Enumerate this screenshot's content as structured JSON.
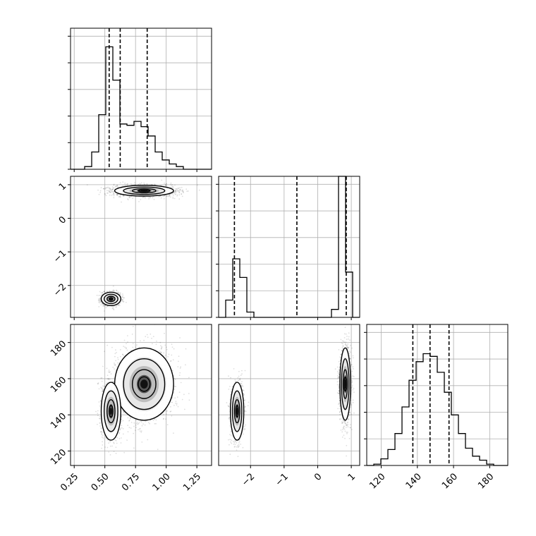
{
  "chart_data": {
    "type": "corner",
    "title": "",
    "parameters": [
      {
        "label": "",
        "range": [
          0.22,
          1.37
        ],
        "ticks": [
          "0.25",
          "0.50",
          "0.75",
          "1.00",
          "1.25"
        ],
        "tick_values": [
          0.25,
          0.5,
          0.75,
          1.0,
          1.25
        ],
        "quantiles": [
          0.535,
          0.625,
          0.845
        ]
      },
      {
        "label": "",
        "range": [
          -2.95,
          1.25
        ],
        "ticks": [
          "−2",
          "−1",
          "0",
          "1"
        ],
        "tick_values": [
          -2,
          -1,
          0,
          1
        ],
        "quantiles": [
          -2.48,
          -0.62,
          0.85
        ]
      },
      {
        "label": "",
        "range": [
          112,
          190
        ],
        "ticks": [
          "120",
          "140",
          "160",
          "180"
        ],
        "tick_values": [
          120,
          140,
          160,
          180
        ],
        "quantiles": [
          137.5,
          147,
          157.5
        ]
      }
    ],
    "histograms": [
      {
        "bin_edges": [
          0.22,
          0.2775,
          0.335,
          0.3925,
          0.45,
          0.5075,
          0.565,
          0.6225,
          0.68,
          0.7375,
          0.795,
          0.8525,
          0.91,
          0.9675,
          1.025,
          1.0825,
          1.14,
          1.1975,
          1.255,
          1.3125,
          1.37
        ],
        "counts": [
          0.0,
          0.0,
          0.02,
          0.13,
          0.41,
          0.92,
          0.67,
          0.34,
          0.33,
          0.36,
          0.32,
          0.25,
          0.13,
          0.07,
          0.04,
          0.02,
          0.0,
          0.0,
          0.0,
          0.0
        ]
      },
      {
        "bin_edges": [
          -2.95,
          -2.74,
          -2.53,
          -2.32,
          -2.11,
          -1.9,
          -1.69,
          -1.48,
          -1.27,
          -1.06,
          -0.85,
          -0.64,
          -0.43,
          -0.22,
          -0.01,
          0.2,
          0.41,
          0.62,
          0.83,
          1.04,
          1.25
        ],
        "counts": [
          0.0,
          0.13,
          0.44,
          0.3,
          0.04,
          0.0,
          0.0,
          0.0,
          0.0,
          0.0,
          0.0,
          0.0,
          0.0,
          0.0,
          0.0,
          0.0,
          0.06,
          1.06,
          0.34,
          0.0
        ]
      },
      {
        "bin_edges": [
          112,
          115.9,
          119.8,
          123.7,
          127.6,
          131.5,
          135.4,
          139.3,
          143.2,
          147.1,
          151,
          154.9,
          158.8,
          162.7,
          166.6,
          170.5,
          174.4,
          178.3,
          182.2,
          186.1,
          190
        ],
        "counts": [
          0.0,
          0.01,
          0.05,
          0.12,
          0.24,
          0.44,
          0.64,
          0.78,
          0.84,
          0.82,
          0.7,
          0.55,
          0.38,
          0.24,
          0.13,
          0.07,
          0.04,
          0.01,
          0.0,
          0.0
        ]
      }
    ],
    "ylim": [
      0,
      1.06
    ],
    "joint_modes": [
      {
        "mean": [
          0.82,
          0.82,
          157
        ],
        "sd": [
          0.12,
          0.08,
          10
        ],
        "weight": 0.67
      },
      {
        "mean": [
          0.55,
          -2.4,
          142
        ],
        "sd": [
          0.04,
          0.1,
          8
        ],
        "weight": 0.33
      }
    ],
    "grid": true,
    "legend": "none"
  }
}
